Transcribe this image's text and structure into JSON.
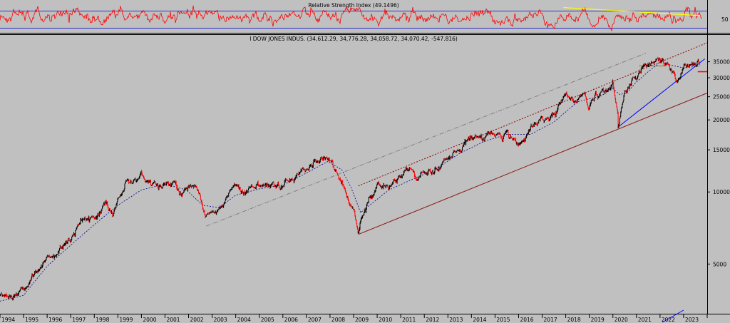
{
  "chart_data": [
    {
      "type": "line",
      "title": "Relative Strength Index (49.1496)",
      "yticks": [
        50
      ],
      "ylim": [
        20,
        85
      ],
      "bands": [
        70,
        30
      ],
      "series": [
        {
          "values_desc": "RSI oscillating between ~30 and ~75",
          "color": "#ff0000"
        }
      ],
      "trendline": {
        "x": [
          2017.9,
          2023.7
        ],
        "y": [
          72,
          55
        ],
        "color": "#ffff00"
      }
    },
    {
      "type": "line",
      "title": "I DOW JONES INDUS. (34,612.29, 34,776.28, 34,058.72, 34,070.42, -547.816)",
      "log_scale": true,
      "ylim": [
        3100,
        42000
      ],
      "xlim": [
        1994.0,
        2024.0
      ],
      "xticks": [
        "1994",
        "1995",
        "1996",
        "1997",
        "1998",
        "1999",
        "2000",
        "2001",
        "2002",
        "2003",
        "2004",
        "2005",
        "2006",
        "2007",
        "2008",
        "2009",
        "2010",
        "2011",
        "2012",
        "2013",
        "2014",
        "2015",
        "2016",
        "2017",
        "2018",
        "2019",
        "2020",
        "2021",
        "2022",
        "2023"
      ],
      "yticks": [
        5000,
        10000,
        15000,
        20000,
        25000,
        30000,
        35000
      ],
      "ytick_labels": [
        "5000",
        "10000",
        "15000",
        "20000",
        "25000",
        "30000",
        "35000"
      ],
      "series": [
        {
          "x": [
            1994.0,
            1994.5,
            1995.0,
            1995.5,
            1996.0,
            1996.5,
            1997.0,
            1997.5,
            1998.0,
            1998.5,
            1998.8,
            1999.0,
            1999.4,
            1999.8,
            2000.0,
            2000.3,
            2000.7,
            2001.0,
            2001.4,
            2001.7,
            2001.9,
            2002.3,
            2002.7,
            2002.9,
            2003.2,
            2003.6,
            2004.0,
            2004.5,
            2005.0,
            2005.5,
            2006.0,
            2006.5,
            2007.0,
            2007.5,
            2007.8,
            2008.2,
            2008.5,
            2008.8,
            2009.0,
            2009.2,
            2009.5,
            2010.0,
            2010.5,
            2011.0,
            2011.3,
            2011.7,
            2012.0,
            2012.5,
            2013.0,
            2013.5,
            2014.0,
            2014.5,
            2015.0,
            2015.5,
            2015.7,
            2016.1,
            2016.5,
            2017.0,
            2017.5,
            2018.0,
            2018.3,
            2018.8,
            2018.98,
            2019.3,
            2019.7,
            2020.0,
            2020.2,
            2020.22,
            2020.5,
            2020.9,
            2021.3,
            2021.7,
            2022.0,
            2022.3,
            2022.5,
            2022.75,
            2023.0,
            2023.3,
            2023.6,
            2023.7
          ],
          "y": [
            3700,
            3650,
            3850,
            4600,
            5200,
            5700,
            6500,
            7900,
            8000,
            9000,
            7800,
            9200,
            10800,
            11000,
            11500,
            10600,
            10800,
            10700,
            10900,
            9500,
            10100,
            10300,
            8200,
            8400,
            8300,
            9500,
            10400,
            10200,
            10700,
            10500,
            10800,
            11200,
            12500,
            13500,
            14000,
            12500,
            11400,
            9000,
            8500,
            7100,
            9000,
            10500,
            10300,
            11800,
            12600,
            11000,
            12500,
            12700,
            13800,
            15300,
            16500,
            17000,
            17800,
            17600,
            16200,
            16000,
            18000,
            19800,
            21500,
            26000,
            24000,
            25500,
            22500,
            26000,
            27000,
            29000,
            21500,
            18600,
            25800,
            29900,
            33000,
            35000,
            36500,
            34000,
            31000,
            29500,
            33500,
            33000,
            35000,
            34100
          ],
          "color": "#000000",
          "down_color": "#ff0000"
        },
        {
          "name": "",
          "values_desc": "moving average (dashed blue)",
          "x": [
            1994.0,
            1995.0,
            1996.0,
            1997.0,
            1998.0,
            1999.0,
            2000.0,
            2001.0,
            2001.9,
            2002.6,
            2003.3,
            2004.0,
            2005.0,
            2006.0,
            2007.0,
            2007.9,
            2008.5,
            2008.9,
            2009.3,
            2009.8,
            2010.5,
            2011.5,
            2012.5,
            2013.5,
            2014.5,
            2015.5,
            2016.5,
            2017.5,
            2018.5,
            2019.5,
            2020.0,
            2020.3,
            2020.6,
            2021.0,
            2021.5,
            2022.0,
            2022.5,
            2023.0,
            2023.7
          ],
          "y": [
            3500,
            3700,
            4900,
            6000,
            7300,
            8800,
            10200,
            10800,
            10200,
            8800,
            8600,
            9700,
            10300,
            10700,
            12000,
            13400,
            12400,
            10400,
            8200,
            9000,
            10200,
            11300,
            12500,
            14500,
            16200,
            17400,
            17400,
            19600,
            23800,
            25200,
            27000,
            25500,
            26000,
            28800,
            31800,
            34800,
            33800,
            33000,
            33600
          ],
          "color": "#00008b",
          "dashed": true
        }
      ],
      "lines": [
        {
          "desc": "dash-dot grey channel",
          "x": [
            2002.75,
            2021.4
          ],
          "y": [
            7200,
            38000
          ],
          "color": "#808080"
        },
        {
          "desc": "dotted dark red channel",
          "x": [
            2009.2,
            2024.0
          ],
          "y": [
            10600,
            42000
          ],
          "color": "#8b0000"
        },
        {
          "desc": "solid brown support",
          "x": [
            2009.2,
            2024.0
          ],
          "y": [
            6650,
            25900
          ],
          "color": "#8b1a1a"
        },
        {
          "desc": "blue support",
          "x": [
            2020.2,
            2023.9
          ],
          "y": [
            18600,
            36000
          ],
          "color": "#0000ff"
        },
        {
          "desc": "olive horizontal",
          "x": [
            2021.1,
            2022.2
          ],
          "y": [
            33600,
            33600
          ],
          "color": "#808000"
        },
        {
          "desc": "red short horizontal",
          "x": [
            2023.6,
            2024.0
          ],
          "y": [
            31800,
            31800
          ],
          "color": "#ff0000"
        }
      ]
    }
  ]
}
